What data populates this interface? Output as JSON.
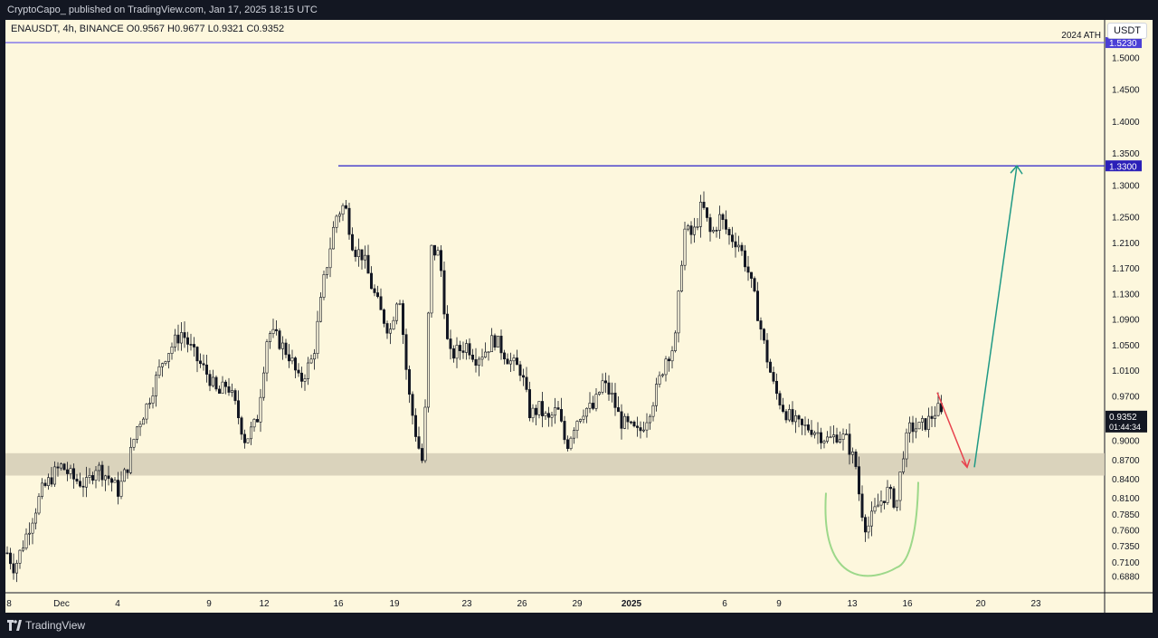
{
  "header": {
    "publish_info": "CryptoCapo_ published on TradingView.com, Jan 17, 2025 18:15 UTC"
  },
  "footer": {
    "brand": "TradingView"
  },
  "chart_data": {
    "type": "candlestick",
    "symbol_line": "ENAUSDT, 4h, BINANCE  O0.9567  H0.9677  L0.9321  C0.9352",
    "currency": "USDT",
    "ylim": [
      0.67,
      1.55
    ],
    "y_ticks": [
      "1.5000",
      "1.4500",
      "1.4000",
      "1.3500",
      "1.3000",
      "1.2500",
      "1.2100",
      "1.1700",
      "1.1300",
      "1.0900",
      "1.0500",
      "1.0100",
      "0.9700",
      "0.9000",
      "0.8700",
      "0.8400",
      "0.8100",
      "0.7850",
      "0.7600",
      "0.7350",
      "0.7100",
      "0.6880"
    ],
    "x_ticks": [
      "8",
      "Dec",
      "4",
      "9",
      "12",
      "16",
      "19",
      "23",
      "26",
      "29",
      "2025",
      "6",
      "9",
      "13",
      "16",
      "20",
      "23"
    ],
    "price_labels": [
      {
        "value": 1.523,
        "text": "1.5230",
        "color": "#4b3fd6"
      },
      {
        "value": 1.33,
        "text": "1.3300",
        "color": "#2a1fb8"
      }
    ],
    "current_price": {
      "value": 0.9352,
      "text": "0.9352",
      "countdown": "01:44:34"
    },
    "annotations": {
      "ath_label": "2024 ATH",
      "ath_value": 1.523,
      "resistance_value": 1.33,
      "support_zone": [
        0.845,
        0.88
      ],
      "colors": {
        "ath": "#5b4ff0",
        "resistance": "#2a22c8",
        "zone": "#d3cdb6",
        "up_arrow": "#1f9985",
        "down_arrow": "#e8424d",
        "curve": "#9dd88a"
      }
    },
    "candles_anchor_points": [
      [
        0,
        0.73
      ],
      [
        10,
        0.7
      ],
      [
        25,
        0.76
      ],
      [
        40,
        0.82
      ],
      [
        55,
        0.85
      ],
      [
        62,
        0.86
      ],
      [
        75,
        0.84
      ],
      [
        90,
        0.83
      ],
      [
        100,
        0.86
      ],
      [
        115,
        0.84
      ],
      [
        125,
        0.82
      ],
      [
        135,
        0.86
      ],
      [
        145,
        0.92
      ],
      [
        155,
        0.95
      ],
      [
        165,
        0.99
      ],
      [
        175,
        1.03
      ],
      [
        185,
        1.05
      ],
      [
        195,
        1.07
      ],
      [
        210,
        1.03
      ],
      [
        225,
        1.0
      ],
      [
        235,
        0.97
      ],
      [
        245,
        0.99
      ],
      [
        255,
        0.95
      ],
      [
        265,
        0.9
      ],
      [
        278,
        0.93
      ],
      [
        290,
        1.07
      ],
      [
        300,
        1.06
      ],
      [
        315,
        1.03
      ],
      [
        325,
        0.99
      ],
      [
        340,
        1.03
      ],
      [
        352,
        1.15
      ],
      [
        365,
        1.25
      ],
      [
        375,
        1.27
      ],
      [
        385,
        1.2
      ],
      [
        395,
        1.19
      ],
      [
        405,
        1.14
      ],
      [
        415,
        1.1
      ],
      [
        425,
        1.07
      ],
      [
        435,
        1.14
      ],
      [
        445,
        0.98
      ],
      [
        455,
        0.9
      ],
      [
        462,
        0.86
      ],
      [
        470,
        1.2
      ],
      [
        480,
        1.19
      ],
      [
        490,
        1.03
      ],
      [
        500,
        1.04
      ],
      [
        510,
        1.05
      ],
      [
        520,
        1.03
      ],
      [
        530,
        1.04
      ],
      [
        540,
        1.06
      ],
      [
        550,
        1.04
      ],
      [
        560,
        1.02
      ],
      [
        570,
        1.01
      ],
      [
        580,
        0.94
      ],
      [
        590,
        0.95
      ],
      [
        600,
        0.93
      ],
      [
        610,
        0.95
      ],
      [
        620,
        0.89
      ],
      [
        630,
        0.93
      ],
      [
        640,
        0.95
      ],
      [
        650,
        0.95
      ],
      [
        660,
        0.99
      ],
      [
        670,
        0.97
      ],
      [
        680,
        0.93
      ],
      [
        690,
        0.92
      ],
      [
        700,
        0.91
      ],
      [
        710,
        0.94
      ],
      [
        720,
        0.98
      ],
      [
        730,
        1.03
      ],
      [
        740,
        1.05
      ],
      [
        750,
        1.23
      ],
      [
        760,
        1.22
      ],
      [
        770,
        1.27
      ],
      [
        780,
        1.22
      ],
      [
        790,
        1.25
      ],
      [
        800,
        1.22
      ],
      [
        810,
        1.21
      ],
      [
        820,
        1.17
      ],
      [
        830,
        1.11
      ],
      [
        840,
        1.04
      ],
      [
        850,
        0.98
      ],
      [
        860,
        0.95
      ],
      [
        870,
        0.93
      ],
      [
        880,
        0.92
      ],
      [
        890,
        0.92
      ],
      [
        900,
        0.91
      ],
      [
        910,
        0.9
      ],
      [
        920,
        0.91
      ],
      [
        930,
        0.9
      ],
      [
        940,
        0.86
      ],
      [
        945,
        0.8
      ],
      [
        952,
        0.76
      ],
      [
        958,
        0.78
      ],
      [
        965,
        0.8
      ],
      [
        975,
        0.82
      ],
      [
        985,
        0.8
      ],
      [
        992,
        0.88
      ],
      [
        1000,
        0.92
      ],
      [
        1010,
        0.92
      ],
      [
        1020,
        0.93
      ],
      [
        1030,
        0.95
      ],
      [
        1036,
        0.935
      ]
    ]
  }
}
